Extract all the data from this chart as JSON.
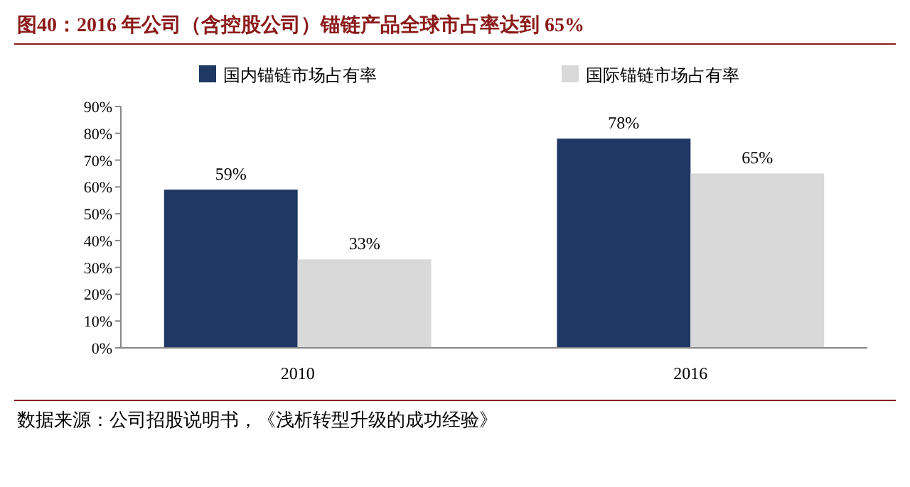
{
  "chart_data": {
    "type": "bar",
    "title": "图40：2016 年公司（含控股公司）锚链产品全球市占率达到 65%",
    "categories": [
      "2010",
      "2016"
    ],
    "series": [
      {
        "name": "国内锚链市场占有率",
        "color": "#1f3864",
        "values": [
          59,
          78
        ],
        "value_labels": [
          "59%",
          "78%"
        ]
      },
      {
        "name": "国际锚链市场占有率",
        "color": "#d9d9d9",
        "values": [
          33,
          65
        ],
        "value_labels": [
          "33%",
          "65%"
        ]
      }
    ],
    "ylim": [
      0,
      90
    ],
    "yticks": [
      {
        "value": 0,
        "label": "0%"
      },
      {
        "value": 10,
        "label": "10%"
      },
      {
        "value": 20,
        "label": "20%"
      },
      {
        "value": 30,
        "label": "30%"
      },
      {
        "value": 40,
        "label": "40%"
      },
      {
        "value": 50,
        "label": "50%"
      },
      {
        "value": 60,
        "label": "60%"
      },
      {
        "value": 70,
        "label": "70%"
      },
      {
        "value": 80,
        "label": "80%"
      },
      {
        "value": 90,
        "label": "90%"
      }
    ],
    "grid": false,
    "legend": "top",
    "annotations": [
      "数据来源：公司招股说明书，《浅析转型升级的成功经验》"
    ]
  }
}
